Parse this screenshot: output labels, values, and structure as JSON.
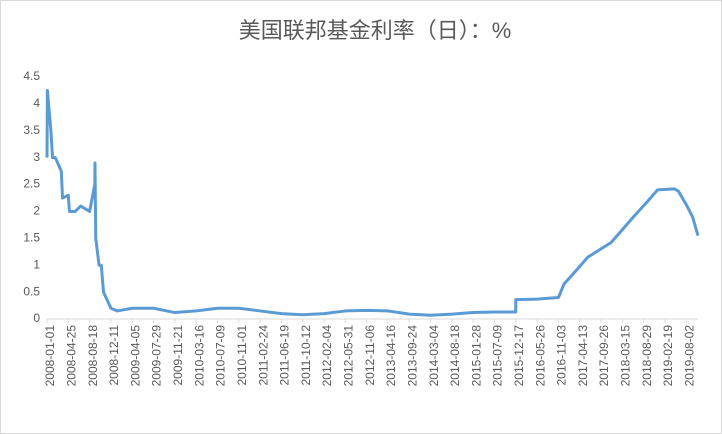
{
  "chart_data": {
    "type": "line",
    "title": "美国联邦基金利率（日）：%",
    "xticks": [
      "2008-01-01",
      "2008-04-25",
      "2008-08-18",
      "2008-12-11",
      "2009-04-05",
      "2009-07-29",
      "2009-11-21",
      "2010-03-16",
      "2010-07-09",
      "2010-11-01",
      "2011-02-24",
      "2011-06-19",
      "2011-10-12",
      "2012-02-04",
      "2012-05-31",
      "2012-11-06",
      "2013-04-16",
      "2013-09-24",
      "2014-03-04",
      "2014-08-18",
      "2015-01-28",
      "2015-07-09",
      "2015-12-17",
      "2016-05-26",
      "2016-11-03",
      "2017-04-13",
      "2017-09-26",
      "2018-03-15",
      "2018-08-29",
      "2019-02-19",
      "2019-08-02"
    ],
    "xlim": [
      "2008-01-01",
      "2019-10-31"
    ],
    "ylim": [
      0,
      4.5
    ],
    "yticks": [
      0,
      0.5,
      1,
      1.5,
      2,
      2.5,
      3,
      3.5,
      4,
      4.5
    ],
    "grid": false,
    "series": [
      {
        "name": "美国联邦基金利率",
        "color": "#5b9bd5",
        "x": [
          "2008-01-01",
          "2008-01-03",
          "2008-01-22",
          "2008-01-31",
          "2008-02-15",
          "2008-03-18",
          "2008-03-25",
          "2008-04-25",
          "2008-05-01",
          "2008-06-01",
          "2008-07-01",
          "2008-08-18",
          "2008-09-15",
          "2008-09-16",
          "2008-09-20",
          "2008-10-08",
          "2008-10-20",
          "2008-11-01",
          "2008-12-11",
          "2009-01-15",
          "2009-04-05",
          "2009-07-29",
          "2009-11-21",
          "2010-03-16",
          "2010-07-09",
          "2010-11-01",
          "2011-02-24",
          "2011-06-19",
          "2011-10-12",
          "2012-02-04",
          "2012-05-31",
          "2012-11-06",
          "2013-04-16",
          "2013-09-24",
          "2014-03-04",
          "2014-08-18",
          "2015-01-28",
          "2015-07-09",
          "2015-12-16",
          "2015-12-17",
          "2016-05-26",
          "2016-11-03",
          "2016-12-15",
          "2017-03-16",
          "2017-06-15",
          "2017-12-14",
          "2018-03-22",
          "2018-06-14",
          "2018-09-27",
          "2018-12-20",
          "2019-05-01",
          "2019-06-01",
          "2019-08-01",
          "2019-09-19",
          "2019-10-31"
        ],
        "values": [
          3.0,
          4.25,
          3.5,
          3.0,
          3.0,
          2.75,
          2.25,
          2.3,
          2.0,
          2.0,
          2.1,
          2.0,
          2.5,
          2.9,
          1.5,
          1.0,
          1.0,
          0.5,
          0.2,
          0.15,
          0.2,
          0.2,
          0.12,
          0.15,
          0.2,
          0.2,
          0.15,
          0.1,
          0.08,
          0.1,
          0.15,
          0.16,
          0.15,
          0.09,
          0.07,
          0.09,
          0.12,
          0.13,
          0.13,
          0.36,
          0.37,
          0.4,
          0.65,
          0.9,
          1.15,
          1.42,
          1.68,
          1.91,
          2.18,
          2.4,
          2.42,
          2.38,
          2.13,
          1.9,
          1.55
        ]
      }
    ]
  }
}
